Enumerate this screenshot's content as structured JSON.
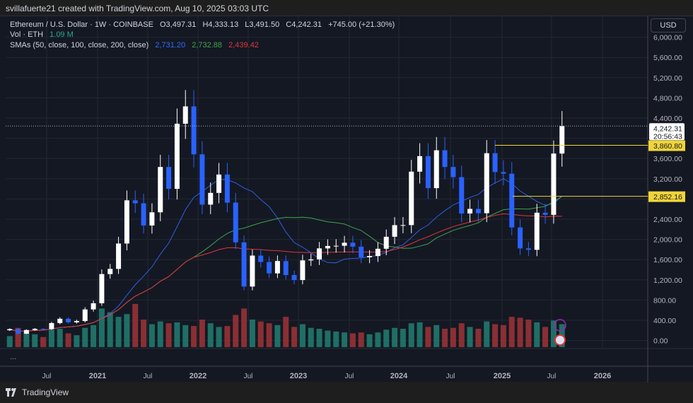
{
  "header": {
    "credit": "svillafuerte21 created with TradingView.com, Aug 10, 2025 03:03 UTC"
  },
  "legend": {
    "symbol": "Ethereum / U.S. Dollar · 1W · COINBASE",
    "open": "O3,497.31",
    "high": "H4,333.13",
    "low": "L3,491.50",
    "close": "C4,242.31",
    "change": "+745.00 (+21.30%)",
    "vol_label": "Vol · ETH",
    "vol_value": "1.09 M",
    "sma_label": "SMAs (50, close, 100, close, 200, close)",
    "sma50": "2,731.20",
    "sma100": "2,732.88",
    "sma200": "2,439.42",
    "more": "..."
  },
  "currency_button": "USD",
  "footer": {
    "brand": "TradingView"
  },
  "colors": {
    "up": "#ffffff",
    "down": "#2962ff",
    "sma50": "#2f5fe0",
    "sma100": "#3fa34d",
    "sma200": "#e0353b",
    "vol_up": "#1f6f66",
    "vol_down": "#8a2f33",
    "hline": "#f0d43a"
  },
  "chart_data": {
    "type": "candlestick",
    "start": "2020-02",
    "close": [
      225,
      135,
      207,
      230,
      225,
      345,
      430,
      360,
      385,
      615,
      737,
      1314,
      1416,
      1918,
      2773,
      2714,
      2275,
      2536,
      3433,
      3000,
      4288,
      4631,
      3683,
      2688,
      2920,
      3283,
      2727,
      1942,
      1067,
      1680,
      1553,
      1328,
      1572,
      1295,
      1196,
      1585,
      1605,
      1822,
      1870,
      1874,
      1934,
      1857,
      1645,
      1671,
      1815,
      2052,
      2282,
      2283,
      3340,
      3647,
      3014,
      3763,
      3433,
      3232,
      2513,
      2603,
      2518,
      3705,
      3332,
      3300,
      2237,
      1822,
      1794,
      2528,
      2486,
      3698,
      4242
    ],
    "volume": [
      120,
      210,
      160,
      140,
      110,
      190,
      200,
      150,
      130,
      210,
      240,
      420,
      380,
      330,
      360,
      470,
      300,
      250,
      280,
      260,
      270,
      240,
      230,
      300,
      260,
      220,
      230,
      350,
      420,
      300,
      280,
      260,
      240,
      330,
      220,
      250,
      210,
      200,
      180,
      170,
      160,
      150,
      160,
      140,
      160,
      190,
      210,
      200,
      260,
      270,
      220,
      240,
      200,
      210,
      260,
      220,
      200,
      280,
      250,
      240,
      330,
      320,
      300,
      270,
      220,
      290,
      250
    ],
    "y_ticks": [
      "6,000.00",
      "5,600.00",
      "5,200.00",
      "4,800.00",
      "4,400.00",
      "3,600.00",
      "3,200.00",
      "2,400.00",
      "2,000.00",
      "1,600.00",
      "1,200.00",
      "800.00",
      "400.00",
      "0.00"
    ],
    "y_range": [
      0,
      6400
    ],
    "x_ticks": [
      "Jul",
      "2021",
      "Jul",
      "2022",
      "Jul",
      "2023",
      "Jul",
      "2024",
      "Jul",
      "2025",
      "Jul",
      "2026"
    ],
    "last_price": {
      "value": 4242.31,
      "label": "4,242.31",
      "countdown": "20:56:43"
    },
    "hlines": [
      {
        "value": 3860.8,
        "label": "3,860.80"
      },
      {
        "value": 2852.16,
        "label": "2,852.16"
      }
    ]
  }
}
